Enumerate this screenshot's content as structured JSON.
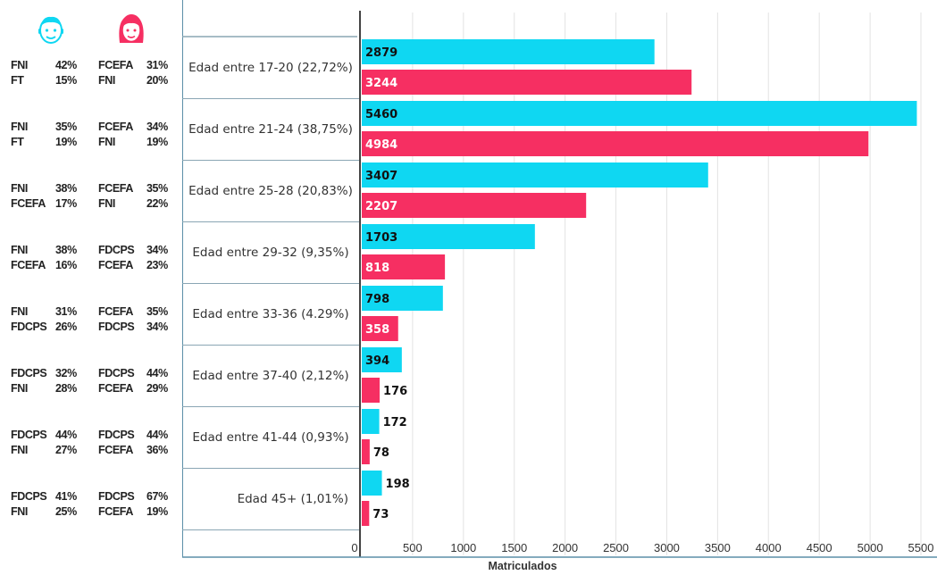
{
  "legend": {
    "male_icon": "male-face-icon",
    "female_icon": "female-face-icon",
    "male_color": "#0fd7f2",
    "female_color": "#f62f62"
  },
  "faculty_stats": [
    {
      "male": [
        [
          "FNI",
          "42%"
        ],
        [
          "FT",
          "15%"
        ]
      ],
      "female": [
        [
          "FCEFA",
          "31%"
        ],
        [
          "FNI",
          "20%"
        ]
      ]
    },
    {
      "male": [
        [
          "FNI",
          "35%"
        ],
        [
          "FT",
          "19%"
        ]
      ],
      "female": [
        [
          "FCEFA",
          "34%"
        ],
        [
          "FNI",
          "19%"
        ]
      ]
    },
    {
      "male": [
        [
          "FNI",
          "38%"
        ],
        [
          "FCEFA",
          "17%"
        ]
      ],
      "female": [
        [
          "FCEFA",
          "35%"
        ],
        [
          "FNI",
          "22%"
        ]
      ]
    },
    {
      "male": [
        [
          "FNI",
          "38%"
        ],
        [
          "FCEFA",
          "16%"
        ]
      ],
      "female": [
        [
          "FDCPS",
          "34%"
        ],
        [
          "FCEFA",
          "23%"
        ]
      ]
    },
    {
      "male": [
        [
          "FNI",
          "31%"
        ],
        [
          "FDCPS",
          "26%"
        ]
      ],
      "female": [
        [
          "FCEFA",
          "35%"
        ],
        [
          "FDCPS",
          "34%"
        ]
      ]
    },
    {
      "male": [
        [
          "FDCPS",
          "32%"
        ],
        [
          "FNI",
          "28%"
        ]
      ],
      "female": [
        [
          "FDCPS",
          "44%"
        ],
        [
          "FCEFA",
          "29%"
        ]
      ]
    },
    {
      "male": [
        [
          "FDCPS",
          "44%"
        ],
        [
          "FNI",
          "27%"
        ]
      ],
      "female": [
        [
          "FDCPS",
          "44%"
        ],
        [
          "FCEFA",
          "36%"
        ]
      ]
    },
    {
      "male": [
        [
          "FDCPS",
          "41%"
        ],
        [
          "FNI",
          "25%"
        ]
      ],
      "female": [
        [
          "FDCPS",
          "67%"
        ],
        [
          "FCEFA",
          "19%"
        ]
      ]
    }
  ],
  "chart_data": {
    "type": "bar",
    "orientation": "horizontal",
    "categories": [
      "Edad entre 17-20 (22,72%)",
      "Edad entre 21-24 (38,75%)",
      "Edad entre 25-28 (20,83%)",
      "Edad entre 29-32 (9,35%)",
      "Edad entre 33-36 (4.29%)",
      "Edad entre 37-40 (2,12%)",
      "Edad entre 41-44 (0,93%)",
      "Edad 45+ (1,01%)"
    ],
    "series": [
      {
        "color": "#0fd7f2",
        "values": [
          2879,
          5460,
          3407,
          1703,
          798,
          394,
          172,
          198
        ]
      },
      {
        "color": "#f62f62",
        "values": [
          3244,
          4984,
          2207,
          818,
          358,
          176,
          78,
          73
        ]
      }
    ],
    "xlabel": "Matriculados",
    "xlim": [
      0,
      5500
    ],
    "xticks": [
      "0",
      "500",
      "1000",
      "1500",
      "2000",
      "2500",
      "3000",
      "3500",
      "4000",
      "4500",
      "5000",
      "5500"
    ],
    "grid": true
  }
}
